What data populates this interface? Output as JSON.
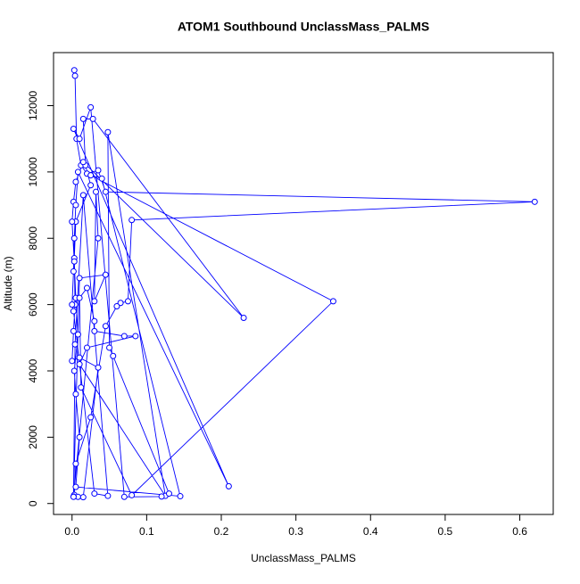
{
  "chart_data": {
    "type": "line",
    "title": "ATOM1 Southbound UnclassMass_PALMS",
    "xlabel": "UnclassMass_PALMS",
    "ylabel": "Altitude (m)",
    "color": "#0000ff",
    "markers": true,
    "x": [
      0.003,
      0.004,
      0.006,
      0.012,
      0.02,
      0.035,
      0.045,
      0.62,
      0.08,
      0.075,
      0.065,
      0.06,
      0.045,
      0.025,
      0.005,
      0.003,
      0.008,
      0.015,
      0.035,
      0.01,
      0.0,
      0.002,
      0.004,
      0.003,
      0.005,
      0.025,
      0.018,
      0.015,
      0.028,
      0.23,
      0.015,
      0.005,
      0.002,
      0.0,
      0.003,
      0.005,
      0.008,
      0.003,
      0.005,
      0.01,
      0.005,
      0.145,
      0.04,
      0.025,
      0.35,
      0.08,
      0.012,
      0.01,
      0.02,
      0.03,
      0.03,
      0.07,
      0.085,
      0.02,
      0.01,
      0.125,
      0.048,
      0.05,
      0.055,
      0.13,
      0.12,
      0.07,
      0.025,
      0.01,
      0.002,
      0.21,
      0.008,
      0.005,
      0.003,
      0.002,
      0.0,
      0.002,
      0.03,
      0.048,
      0.015,
      0.004,
      0.002,
      0.01,
      0.045,
      0.03,
      0.032,
      0.035,
      0.002
    ],
    "values": [
      13070,
      12900,
      11000,
      10200,
      9950,
      10050,
      9400,
      9100,
      8550,
      6100,
      6050,
      5950,
      5350,
      2600,
      1200,
      260,
      200,
      190,
      4100,
      4400,
      4300,
      5200,
      6000,
      7400,
      8500,
      9600,
      10200,
      11600,
      11600,
      5600,
      10300,
      9700,
      9100,
      8500,
      7300,
      6200,
      5100,
      4000,
      3300,
      2000,
      500,
      220,
      9800,
      9900,
      6100,
      250,
      3500,
      6200,
      6500,
      5500,
      5200,
      5050,
      5050,
      4700,
      4200,
      230,
      11200,
      4700,
      4450,
      300,
      210,
      200,
      11950,
      11000,
      11300,
      520,
      10000,
      9000,
      8000,
      7000,
      6000,
      5800,
      300,
      230,
      9300,
      4800,
      210,
      6800,
      6900,
      6100,
      9400,
      8000,
      200
    ],
    "xlim": [
      -0.0248,
      0.6448
    ],
    "ylim": [
      -330,
      13600
    ],
    "xticks": [
      {
        "value": 0,
        "label": "0.0"
      },
      {
        "value": 0.1,
        "label": "0.1"
      },
      {
        "value": 0.2,
        "label": "0.2"
      },
      {
        "value": 0.3,
        "label": "0.3"
      },
      {
        "value": 0.4,
        "label": "0.4"
      },
      {
        "value": 0.5,
        "label": "0.5"
      },
      {
        "value": 0.6,
        "label": "0.6"
      }
    ],
    "yticks": [
      0,
      2000,
      4000,
      6000,
      8000,
      10000,
      12000
    ]
  }
}
